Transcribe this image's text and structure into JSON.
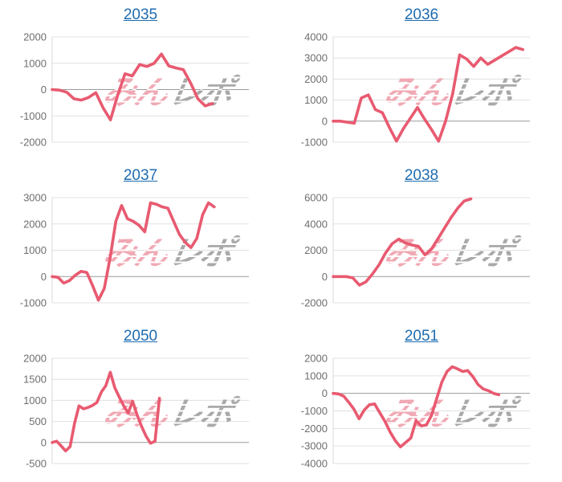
{
  "page": {
    "background": "#ffffff"
  },
  "colors": {
    "line": "#e85a70",
    "grid": "#e0e0e0",
    "axis_line": "#d8d8d8",
    "zero_line": "#9b9b9b",
    "tick_label": "#6e6e6e",
    "title_link": "#1e6cb0",
    "watermark_pink": "#f0a9b4",
    "watermark_gray": "#a9a9a9",
    "background": "#ffffff"
  },
  "watermark": {
    "pink_text": "みん",
    "gray_text": "レポ"
  },
  "chart_data": [
    {
      "type": "line",
      "title": "2035",
      "xlabel": "",
      "ylabel": "",
      "x_labels": "none",
      "grid": true,
      "legend": "none",
      "ylim": [
        -2000,
        2000
      ],
      "yticks": [
        2000,
        1000,
        0,
        -1000,
        -2000
      ],
      "x_slots": 28,
      "values": [
        0,
        -20,
        -100,
        -350,
        -400,
        -300,
        -120,
        -700,
        -1150,
        -200,
        600,
        520,
        950,
        880,
        1000,
        1350,
        900,
        820,
        760,
        250,
        -350,
        -620,
        -530
      ]
    },
    {
      "type": "line",
      "title": "2036",
      "xlabel": "",
      "ylabel": "",
      "x_labels": "none",
      "grid": true,
      "legend": "none",
      "ylim": [
        -1000,
        4000
      ],
      "yticks": [
        4000,
        3000,
        2000,
        1000,
        0,
        -1000
      ],
      "x_slots": 29,
      "values": [
        0,
        0,
        -50,
        -100,
        1100,
        1250,
        550,
        400,
        -300,
        -950,
        -350,
        150,
        650,
        100,
        -400,
        -950,
        0,
        1300,
        3150,
        2950,
        2600,
        3000,
        2700,
        2900,
        3100,
        3300,
        3500,
        3400
      ]
    },
    {
      "type": "line",
      "title": "2037",
      "xlabel": "",
      "ylabel": "",
      "x_labels": "none",
      "grid": true,
      "legend": "none",
      "ylim": [
        -1000,
        3000
      ],
      "yticks": [
        3000,
        2000,
        1000,
        0,
        -1000
      ],
      "x_slots": 35,
      "values": [
        0,
        -30,
        -250,
        -150,
        50,
        200,
        150,
        -350,
        -900,
        -450,
        700,
        2100,
        2700,
        2200,
        2100,
        1950,
        1700,
        2800,
        2750,
        2650,
        2600,
        2100,
        1600,
        1300,
        1100,
        1450,
        2350,
        2800,
        2650
      ]
    },
    {
      "type": "line",
      "title": "2038",
      "xlabel": "",
      "ylabel": "",
      "x_labels": "none",
      "grid": true,
      "legend": "none",
      "ylim": [
        -2000,
        6000
      ],
      "yticks": [
        6000,
        4000,
        2000,
        0,
        -2000
      ],
      "x_slots": 31,
      "values": [
        0,
        0,
        0,
        -100,
        -650,
        -400,
        200,
        900,
        1800,
        2500,
        2850,
        2550,
        2400,
        2300,
        1650,
        2100,
        2900,
        3700,
        4500,
        5200,
        5750,
        5900
      ]
    },
    {
      "type": "line",
      "title": "2050",
      "xlabel": "",
      "ylabel": "",
      "x_labels": "none",
      "grid": true,
      "legend": "none",
      "ylim": [
        -500,
        2000
      ],
      "yticks": [
        2000,
        1500,
        1000,
        500,
        0,
        -500
      ],
      "x_slots": 45,
      "values": [
        0,
        30,
        -80,
        -200,
        -100,
        450,
        870,
        800,
        830,
        880,
        950,
        1200,
        1350,
        1670,
        1300,
        1080,
        870,
        700,
        980,
        650,
        380,
        150,
        -20,
        30,
        1050
      ]
    },
    {
      "type": "line",
      "title": "2051",
      "xlabel": "",
      "ylabel": "",
      "x_labels": "none",
      "grid": true,
      "legend": "none",
      "ylim": [
        -4000,
        2000
      ],
      "yticks": [
        2000,
        1000,
        0,
        -1000,
        -2000,
        -3000,
        -4000
      ],
      "x_slots": 39,
      "values": [
        0,
        -30,
        -150,
        -500,
        -900,
        -1450,
        -950,
        -650,
        -600,
        -1100,
        -1600,
        -2200,
        -2700,
        -3050,
        -2800,
        -2550,
        -1550,
        -1850,
        -1800,
        -1250,
        -300,
        650,
        1250,
        1520,
        1400,
        1250,
        1300,
        950,
        500,
        250,
        150,
        0,
        -80
      ]
    }
  ]
}
